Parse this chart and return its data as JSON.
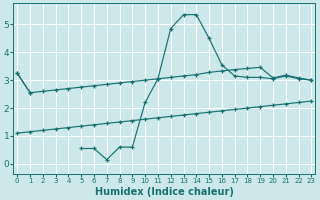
{
  "xlabel": "Humidex (Indice chaleur)",
  "bg_color": "#cce8ea",
  "grid_color": "#ffffff",
  "line_color": "#1a7070",
  "xlim": [
    -0.3,
    23.3
  ],
  "ylim": [
    -0.35,
    5.75
  ],
  "xticks": [
    0,
    1,
    2,
    3,
    4,
    5,
    6,
    7,
    8,
    9,
    10,
    11,
    12,
    13,
    14,
    15,
    16,
    17,
    18,
    19,
    20,
    21,
    22,
    23
  ],
  "yticks": [
    0,
    1,
    2,
    3,
    4,
    5
  ],
  "x_vals": [
    0,
    1,
    2,
    3,
    4,
    5,
    6,
    7,
    8,
    9,
    10,
    11,
    12,
    13,
    14,
    15,
    16,
    17,
    18,
    19,
    20,
    21,
    22,
    23
  ],
  "line_top_y": [
    3.25,
    2.55,
    2.6,
    2.65,
    2.7,
    2.75,
    2.8,
    2.85,
    2.9,
    2.95,
    3.0,
    3.05,
    3.1,
    3.15,
    3.2,
    3.28,
    3.33,
    3.38,
    3.42,
    3.46,
    3.08,
    3.18,
    3.08,
    3.0
  ],
  "line_mid_y": [
    1.1,
    1.15,
    1.2,
    1.25,
    1.3,
    1.35,
    1.4,
    1.45,
    1.5,
    1.55,
    1.6,
    1.65,
    1.7,
    1.75,
    1.8,
    1.85,
    1.9,
    1.95,
    2.0,
    2.05,
    2.1,
    2.15,
    2.2,
    2.25
  ],
  "line_main_y": [
    3.25,
    2.55,
    null,
    null,
    null,
    0.55,
    0.55,
    0.15,
    0.6,
    0.6,
    2.2,
    3.05,
    4.85,
    5.35,
    5.35,
    4.5,
    3.55,
    3.15,
    3.1,
    3.1,
    3.05,
    3.15,
    3.05,
    3.0
  ]
}
